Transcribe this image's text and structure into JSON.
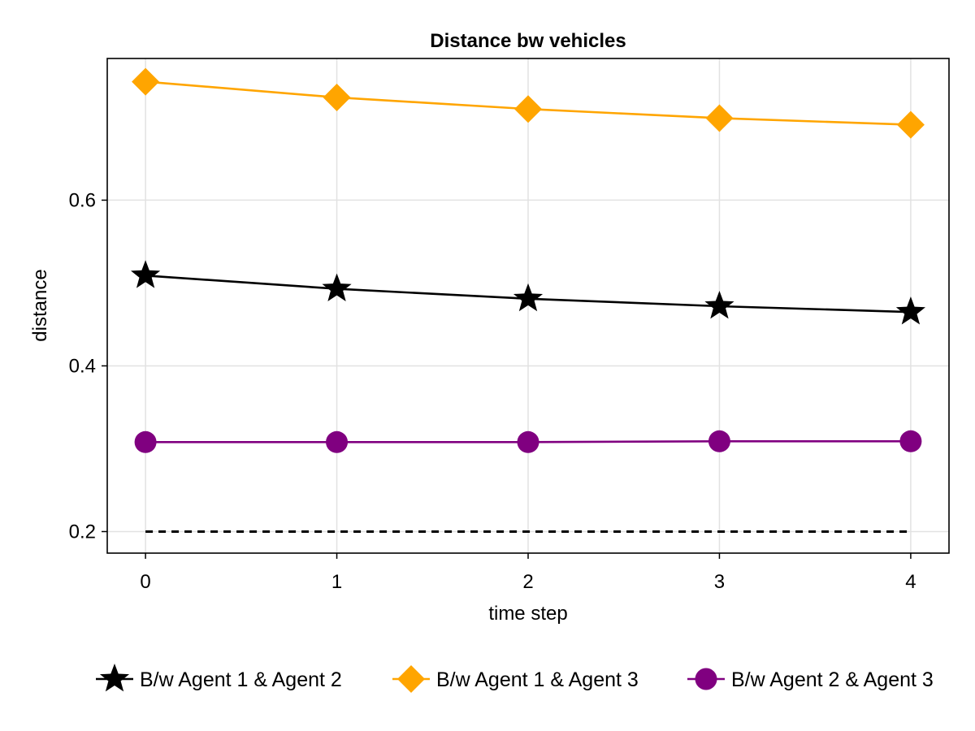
{
  "chart_data": {
    "type": "line",
    "title": "Distance bw vehicles",
    "xlabel": "time step",
    "ylabel": "distance",
    "x": [
      0,
      1,
      2,
      3,
      4
    ],
    "xlim": [
      -0.2,
      4.2
    ],
    "ylim": [
      0.174,
      0.771
    ],
    "xticks": [
      0,
      1,
      2,
      3,
      4
    ],
    "yticks": [
      0.2,
      0.4,
      0.6
    ],
    "ytick_labels": [
      "0.2",
      "0.4",
      "0.6"
    ],
    "grid": true,
    "legend_position": "bottom",
    "series": [
      {
        "name": "B/w Agent 1 & Agent 2",
        "values": [
          0.509,
          0.493,
          0.481,
          0.472,
          0.465
        ],
        "color": "#000000",
        "marker": "star"
      },
      {
        "name": "B/w Agent 1 & Agent 3",
        "values": [
          0.743,
          0.724,
          0.71,
          0.699,
          0.691
        ],
        "color": "#FFA500",
        "marker": "diamond"
      },
      {
        "name": "B/w Agent 2 & Agent 3",
        "values": [
          0.308,
          0.308,
          0.308,
          0.309,
          0.309
        ],
        "color": "#800080",
        "marker": "circle"
      }
    ],
    "reference_line": {
      "y": 0.2,
      "style": "dashed",
      "color": "#000000"
    }
  }
}
